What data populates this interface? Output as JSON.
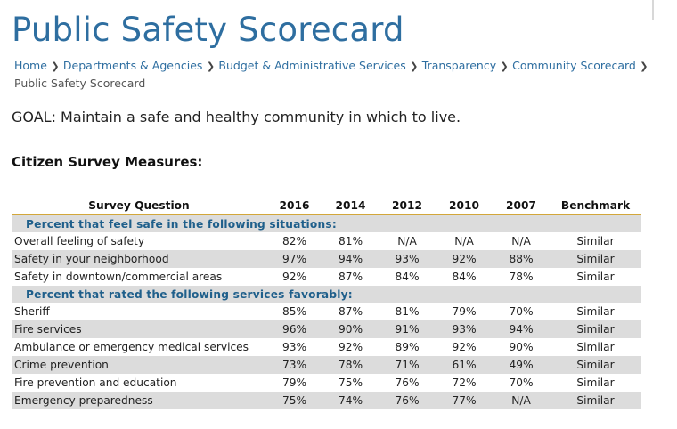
{
  "page": {
    "title": "Public Safety Scorecard",
    "breadcrumb": [
      "Home",
      "Departments & Agencies",
      "Budget & Administrative Services",
      "Transparency",
      "Community Scorecard",
      "Public Safety Scorecard"
    ],
    "goal": "GOAL: Maintain a safe and healthy community in which to live.",
    "section_heading": "Citizen Survey Measures:"
  },
  "table": {
    "headers": [
      "Survey Question",
      "2016",
      "2014",
      "2012",
      "2010",
      "2007",
      "Benchmark"
    ],
    "groups": [
      {
        "label": "Percent that feel safe in the following situations:",
        "rows": [
          [
            "Overall feeling of safety",
            "82%",
            "81%",
            "N/A",
            "N/A",
            "N/A",
            "Similar"
          ],
          [
            "Safety in your neighborhood",
            "97%",
            "94%",
            "93%",
            "92%",
            "88%",
            "Similar"
          ],
          [
            "Safety in downtown/commercial areas",
            "92%",
            "87%",
            "84%",
            "84%",
            "78%",
            "Similar"
          ]
        ]
      },
      {
        "label": "Percent that rated the following services favorably:",
        "rows": [
          [
            "Sheriff",
            "85%",
            "87%",
            "81%",
            "79%",
            "70%",
            "Similar"
          ],
          [
            "Fire services",
            "96%",
            "90%",
            "91%",
            "93%",
            "94%",
            "Similar"
          ],
          [
            "Ambulance or emergency medical services",
            "93%",
            "92%",
            "89%",
            "92%",
            "90%",
            "Similar"
          ],
          [
            "Crime prevention",
            "73%",
            "78%",
            "71%",
            "61%",
            "49%",
            "Similar"
          ],
          [
            "Fire prevention and education",
            "79%",
            "75%",
            "76%",
            "72%",
            "70%",
            "Similar"
          ],
          [
            "Emergency preparedness",
            "75%",
            "74%",
            "76%",
            "77%",
            "N/A",
            "Similar"
          ]
        ]
      }
    ]
  },
  "colors": {
    "title_blue": "#2e6ea0",
    "header_rule_gold": "#d3a73a",
    "row_shade_gray": "#dcdcdc"
  }
}
